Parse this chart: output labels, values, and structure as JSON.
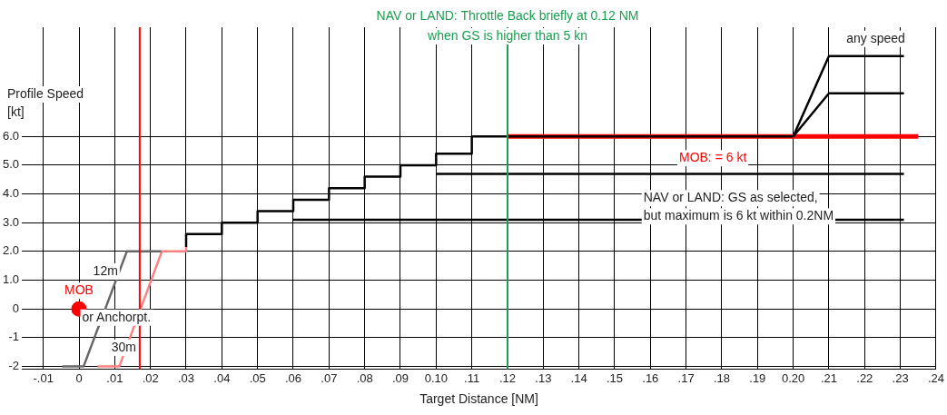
{
  "chart_data": {
    "type": "line",
    "xlabel": "Target Distance [NM]",
    "ylabel": "Profile Speed\n[kt]",
    "xlim": [
      -0.016,
      0.24
    ],
    "xticks": [
      {
        "value": -0.01,
        "label": "-.01"
      },
      0,
      {
        "value": 0.01,
        "label": ".01"
      },
      {
        "value": 0.02,
        "label": ".02"
      },
      {
        "value": 0.03,
        "label": ".03"
      },
      {
        "value": 0.04,
        "label": ".04"
      },
      {
        "value": 0.05,
        "label": ".05"
      },
      {
        "value": 0.06,
        "label": ".06"
      },
      {
        "value": 0.07,
        "label": ".07"
      },
      {
        "value": 0.08,
        "label": ".08"
      },
      {
        "value": 0.09,
        "label": ".09"
      },
      {
        "value": 0.1,
        "label": "0.10"
      },
      {
        "value": 0.11,
        "label": ".11"
      },
      {
        "value": 0.12,
        "label": ".12"
      },
      {
        "value": 0.13,
        "label": ".13"
      },
      {
        "value": 0.14,
        "label": ".14"
      },
      {
        "value": 0.15,
        "label": ".15"
      },
      {
        "value": 0.16,
        "label": ".16"
      },
      {
        "value": 0.17,
        "label": ".17"
      },
      {
        "value": 0.18,
        "label": ".18"
      },
      {
        "value": 0.19,
        "label": ".19"
      },
      {
        "value": 0.2,
        "label": "0.20"
      },
      {
        "value": 0.21,
        "label": ".21"
      },
      {
        "value": 0.22,
        "label": ".22"
      },
      {
        "value": 0.23,
        "label": ".23"
      },
      {
        "value": 0.24,
        "label": ".24"
      }
    ],
    "ylim": [
      -2.1,
      9.8
    ],
    "yticks": [
      -2,
      -1,
      0,
      {
        "value": 1,
        "label": "1.0"
      },
      {
        "value": 2,
        "label": "2.0"
      },
      {
        "value": 3,
        "label": "3.0"
      },
      {
        "value": 4,
        "label": "4.0"
      },
      {
        "value": 5,
        "label": "5.0"
      },
      {
        "value": 6,
        "label": "6.0"
      }
    ],
    "grid": true,
    "legend": false,
    "series": [
      {
        "type": "step",
        "color": "#000000",
        "x": [
          0.03,
          0.04,
          0.05,
          0.06,
          0.07,
          0.08,
          0.09,
          0.1,
          0.11,
          0.12,
          0.2
        ],
        "values": [
          2.15,
          2.6,
          3.0,
          3.4,
          3.8,
          4.2,
          4.6,
          5.0,
          5.4,
          6.0,
          6.0
        ]
      },
      {
        "color": "#000000",
        "x": [
          0.06,
          0.231
        ],
        "values": [
          3.1,
          3.1
        ]
      },
      {
        "color": "#000000",
        "x": [
          0.1,
          0.231
        ],
        "values": [
          4.7,
          4.7
        ]
      },
      {
        "color": "#000000",
        "x": [
          0.2,
          0.21,
          0.231
        ],
        "values": [
          6.0,
          8.8,
          8.8
        ]
      },
      {
        "color": "#000000",
        "x": [
          0.2,
          0.21,
          0.231
        ],
        "values": [
          6.0,
          7.5,
          7.5
        ]
      },
      {
        "name": "MOB: = 6 kt",
        "color": "#ff0000",
        "x": [
          0.12,
          0.235
        ],
        "values": [
          6.0,
          6.0
        ]
      },
      {
        "color": "#666666",
        "x": [
          -0.0047,
          0.0013,
          0.0134,
          0.023
        ],
        "values": [
          -2,
          -2,
          2,
          2
        ]
      },
      {
        "color": "#ff8080",
        "x": [
          0.0052,
          0.0113,
          0.0232,
          0.03,
          0.03
        ],
        "values": [
          -2,
          -2,
          2,
          2,
          2.15
        ]
      },
      {
        "type": "scatter",
        "name": "MOB",
        "color": "#ff0000",
        "marker": "circle",
        "x": [
          0
        ],
        "values": [
          0
        ]
      }
    ],
    "ref_lines": [
      {
        "axis": "x",
        "value": 0.12,
        "label": "NAV or LAND: Throttle Back briefly at 0.12 NM\nwhen GS is higher than 5 kn",
        "color": "#1a9e50"
      },
      {
        "axis": "x",
        "value": 0.017,
        "color": "#ff0000"
      }
    ],
    "annotations": [
      "12m",
      "or Anchorpt.",
      "30m",
      "any speed",
      "NAV or LAND: GS as selected,\nbut maximum is 6 kt within 0.2NM"
    ]
  }
}
